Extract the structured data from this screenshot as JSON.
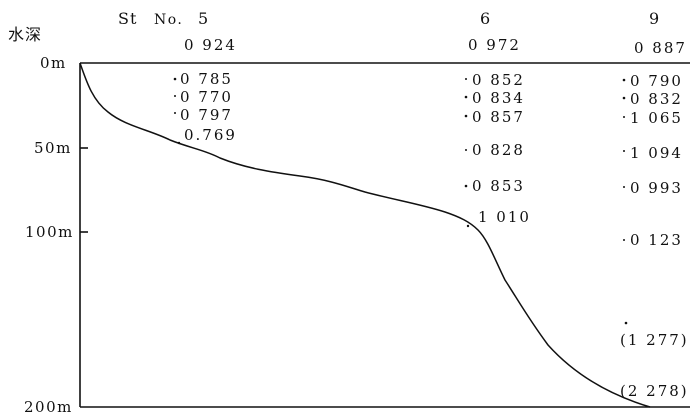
{
  "depth_axis": {
    "title": "水深",
    "ticks": [
      {
        "label": "0m",
        "depth": 0
      },
      {
        "label": "50m",
        "depth": 50
      },
      {
        "label": "100m",
        "depth": 100
      },
      {
        "label": "200m",
        "depth": 200
      }
    ]
  },
  "station_header": {
    "prefix": "St",
    "no_label": "No.",
    "stations": [
      "5",
      "6",
      "9"
    ]
  },
  "stations": [
    {
      "id": "5",
      "surface": "0 924",
      "values": [
        "0 785",
        "0 770",
        "0 797",
        "0.769"
      ]
    },
    {
      "id": "6",
      "surface": "0 972",
      "values": [
        "0 852",
        "0 834",
        "0 857",
        "0 828",
        "0 853",
        "1 010"
      ]
    },
    {
      "id": "9",
      "surface": "0 887",
      "values": [
        "0 790",
        "0 832",
        "1 065",
        "1 094",
        "0 993",
        "0 123",
        "(1 277)",
        "(2 278)"
      ]
    }
  ],
  "profile_curve": {
    "description_free": true
  }
}
